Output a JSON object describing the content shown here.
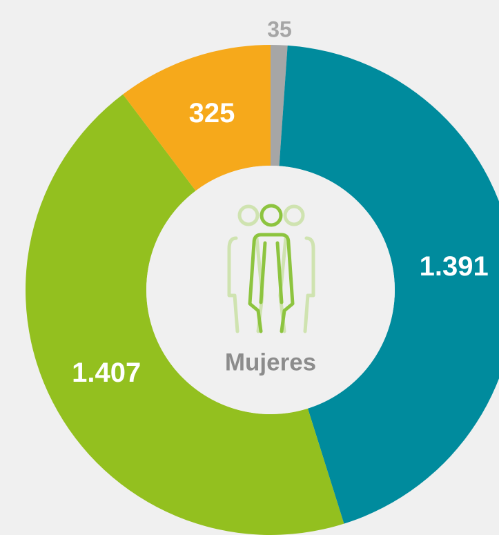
{
  "chart_data": {
    "type": "donut",
    "center_label": "Mujeres",
    "categories": [
      null,
      null,
      null,
      null
    ],
    "values": [
      35,
      1391,
      1407,
      325
    ],
    "value_labels": [
      "35",
      "1.391",
      "1.407",
      "325"
    ],
    "colors": [
      "#a6a6a6",
      "#008b9d",
      "#93c01f",
      "#f6a91b"
    ]
  }
}
